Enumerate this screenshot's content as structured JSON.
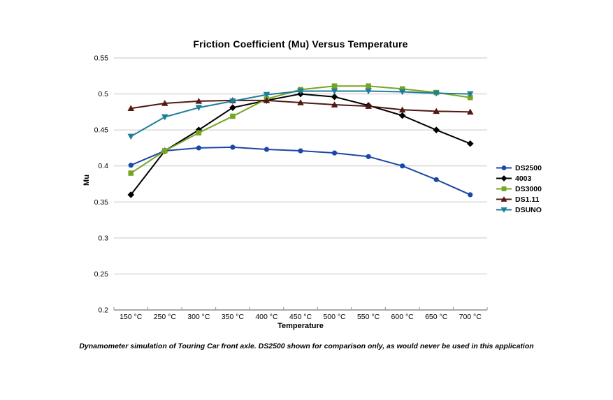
{
  "chart_data": {
    "type": "line",
    "title": "Friction Coefficient (Mu) Versus Temperature",
    "xlabel": "Temperature",
    "ylabel": "Mu",
    "categories": [
      "150 °C",
      "250 °C",
      "300 °C",
      "350 °C",
      "400 °C",
      "450 °C",
      "500 °C",
      "550 °C",
      "600 °C",
      "650 °C",
      "700 °C"
    ],
    "ylim": [
      0.2,
      0.55
    ],
    "ytick_labels": [
      "0.55",
      "0.5",
      "0.45",
      "0.4",
      "0.35",
      "0.3",
      "0.25",
      "0.2"
    ],
    "ytick_values": [
      0.55,
      0.5,
      0.45,
      0.4,
      0.35,
      0.3,
      0.25,
      0.2
    ],
    "grid": "horizontal",
    "legend_position": "right",
    "series": [
      {
        "name": "DS2500",
        "color": "#1C47A5",
        "marker": "circle",
        "values": [
          0.401,
          0.421,
          0.425,
          0.426,
          0.423,
          0.421,
          0.418,
          0.413,
          0.4,
          0.381,
          0.36
        ]
      },
      {
        "name": "4003",
        "color": "#000000",
        "marker": "diamond",
        "values": [
          0.36,
          0.421,
          0.45,
          0.481,
          0.491,
          0.5,
          0.496,
          0.484,
          0.47,
          0.45,
          0.431
        ]
      },
      {
        "name": "DS3000",
        "color": "#76A522",
        "marker": "square",
        "values": [
          0.39,
          0.421,
          0.446,
          0.469,
          0.493,
          0.506,
          0.511,
          0.511,
          0.507,
          0.502,
          0.495
        ]
      },
      {
        "name": "DS1.11",
        "color": "#521812",
        "marker": "triangle-up",
        "values": [
          0.48,
          0.487,
          0.49,
          0.491,
          0.491,
          0.488,
          0.485,
          0.483,
          0.478,
          0.476,
          0.475
        ]
      },
      {
        "name": "DSUNO",
        "color": "#1F7E9D",
        "marker": "triangle-down",
        "values": [
          0.441,
          0.468,
          0.481,
          0.49,
          0.499,
          0.504,
          0.504,
          0.504,
          0.503,
          0.501,
          0.5
        ]
      }
    ]
  },
  "caption": "Dynamometer simulation of Touring Car front axle. DS2500 shown for comparison only, as would never be used in this application",
  "colors": {
    "background": "#ffffff",
    "gridline": "#C6C6C6",
    "axis_line": "#8F8F8F",
    "text": "#000000"
  }
}
